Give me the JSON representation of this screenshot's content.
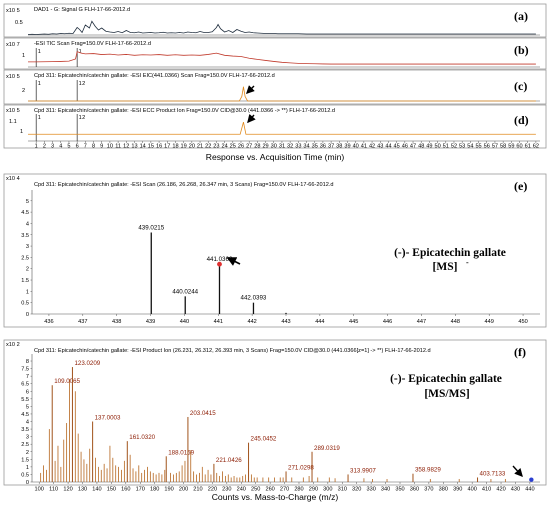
{
  "chart_data": [
    {
      "panel": "(a)",
      "type": "line",
      "title": "DAD1 - G: Signal G FLH-17-66-2012.d",
      "y_multiplier": "x10 5",
      "yticks": [
        "0.5"
      ],
      "ylim": [
        0,
        0.8
      ],
      "xlim": [
        0,
        62.5
      ],
      "color": "#1f2d3d",
      "series": [
        {
          "x": [
            0,
            0.5,
            1,
            1.5,
            2,
            2.5,
            3,
            3.5,
            4,
            4.5,
            5,
            5.5,
            6,
            6.3,
            6.6,
            7,
            7.5,
            7.8,
            8.2,
            8.6,
            9,
            9.5,
            10,
            10.5,
            11,
            11.5,
            12,
            12.5,
            13,
            13.5,
            14,
            14.5,
            15,
            15.5,
            16,
            16.5,
            17,
            17.5,
            18,
            18.5,
            19,
            19.5,
            20,
            20.5,
            21,
            21.5,
            22,
            22.5,
            23,
            23.2,
            23.5,
            24,
            24.5,
            25,
            25.5,
            26,
            26.5,
            27,
            27.5,
            28,
            28.5,
            29,
            29.5,
            30,
            30.5,
            31,
            31.5,
            32,
            32.5,
            33,
            34,
            35,
            36,
            37,
            38,
            39,
            40,
            41,
            42,
            43,
            44,
            45,
            46,
            47,
            48,
            49,
            50,
            51,
            52,
            53,
            54,
            55,
            56,
            57,
            58,
            59,
            60,
            61,
            62
          ],
          "y": [
            0.02,
            0.03,
            0.02,
            0.03,
            0.04,
            0.03,
            0.05,
            0.04,
            0.06,
            0.05,
            0.07,
            0.06,
            0.3,
            0.22,
            0.1,
            0.4,
            0.28,
            0.55,
            0.35,
            0.2,
            0.28,
            0.15,
            0.12,
            0.1,
            0.14,
            0.09,
            0.18,
            0.1,
            0.09,
            0.12,
            0.08,
            0.09,
            0.1,
            0.08,
            0.09,
            0.11,
            0.08,
            0.09,
            0.08,
            0.1,
            0.08,
            0.12,
            0.1,
            0.09,
            0.14,
            0.1,
            0.1,
            0.13,
            0.3,
            0.42,
            0.25,
            0.12,
            0.18,
            0.1,
            0.22,
            0.15,
            0.1,
            0.12,
            0.09,
            0.08,
            0.07,
            0.06,
            0.06,
            0.06,
            0.05,
            0.05,
            0.05,
            0.05,
            0.05,
            0.05,
            0.04,
            0.04,
            0.04,
            0.04,
            0.04,
            0.04,
            0.04,
            0.04,
            0.04,
            0.04,
            0.04,
            0.04,
            0.04,
            0.04,
            0.04,
            0.04,
            0.04,
            0.04,
            0.04,
            0.04,
            0.04,
            0.04,
            0.04,
            0.04,
            0.04,
            0.04,
            0.04,
            0.04,
            0.04
          ]
        }
      ]
    },
    {
      "panel": "(b)",
      "type": "line",
      "title": "-ESI TIC Scan Frag=150.0V FLH-17-66-2012.d",
      "y_multiplier": "x10 7",
      "yticks": [
        "1"
      ],
      "ylim": [
        0,
        1.3
      ],
      "xlim": [
        0,
        62.5
      ],
      "color": "#c0392b",
      "annotations": [
        "1",
        "1"
      ],
      "series": [
        {
          "x": [
            0,
            1,
            2,
            3,
            4,
            5,
            5.8,
            6,
            6.5,
            7,
            8,
            9,
            10,
            11,
            12,
            13,
            14,
            15,
            16,
            17,
            18,
            19,
            20,
            21,
            22,
            23,
            24,
            25,
            26,
            27,
            28,
            29,
            30,
            31,
            32,
            33,
            34,
            35,
            36,
            37,
            38,
            40,
            42,
            44,
            46,
            48,
            50,
            52,
            54,
            56,
            58,
            60,
            62
          ],
          "y": [
            0.35,
            0.35,
            0.36,
            0.37,
            0.38,
            0.4,
            0.55,
            1.05,
            0.95,
            0.9,
            0.92,
            0.85,
            0.88,
            0.82,
            0.86,
            0.8,
            0.84,
            0.82,
            0.85,
            0.8,
            0.84,
            0.8,
            0.82,
            0.8,
            0.86,
            0.95,
            0.8,
            0.75,
            0.72,
            0.6,
            0.52,
            0.45,
            0.38,
            0.32,
            0.28,
            0.25,
            0.23,
            0.22,
            0.21,
            0.2,
            0.2,
            0.2,
            0.2,
            0.2,
            0.2,
            0.2,
            0.2,
            0.2,
            0.2,
            0.2,
            0.2,
            0.2,
            0.2
          ]
        }
      ]
    },
    {
      "panel": "(c)",
      "type": "line",
      "title": "Cpd 311: Epicatechin/catechin gallate: -ESI EIC(441.0366) Scan Frag=150.0V FLH-17-66-2012.d",
      "y_multiplier": "x10 5",
      "yticks": [
        "2"
      ],
      "ylim": [
        0,
        2.8
      ],
      "xlim": [
        0,
        62.5
      ],
      "color": "#e08a1e",
      "annotations": [
        "1",
        "1",
        "2"
      ],
      "series": [
        {
          "x": [
            0,
            25.8,
            26.1,
            26.3,
            26.5,
            26.8,
            62
          ],
          "y": [
            0,
            0,
            0.6,
            1.9,
            0.6,
            0,
            0
          ]
        }
      ]
    },
    {
      "panel": "(d)",
      "type": "line",
      "title": "Cpd 311: Epicatechin/catechin gallate: -ESI ECC Product Ion Frag=150.0V CID@30.0 (441.0366 -> **) FLH-17-66-2012.d",
      "y_multiplier": "x10 5",
      "yticks": [
        "1.1",
        "1"
      ],
      "ylim": [
        0.95,
        1.15
      ],
      "xlim": [
        0,
        62.5
      ],
      "color": "#e08a1e",
      "annotations": [
        "1",
        "1",
        "2"
      ],
      "xlabel": "Response vs. Acquisition Time (min)",
      "xticks": [
        "1",
        "2",
        "3",
        "4",
        "5",
        "6",
        "7",
        "8",
        "9",
        "10",
        "11",
        "12",
        "13",
        "14",
        "15",
        "16",
        "17",
        "18",
        "19",
        "20",
        "21",
        "22",
        "23",
        "24",
        "25",
        "26",
        "27",
        "28",
        "29",
        "30",
        "31",
        "32",
        "33",
        "34",
        "35",
        "36",
        "37",
        "38",
        "39",
        "40",
        "41",
        "42",
        "43",
        "44",
        "45",
        "46",
        "47",
        "48",
        "49",
        "50",
        "51",
        "52",
        "53",
        "54",
        "55",
        "56",
        "57",
        "58",
        "59",
        "60",
        "61",
        "62"
      ],
      "series": [
        {
          "x": [
            0,
            25.9,
            26.3,
            26.6,
            62
          ],
          "y": [
            1.0,
            1.0,
            1.09,
            1.0,
            1.0
          ]
        }
      ]
    },
    {
      "panel": "(e)",
      "type": "bar",
      "title": "Cpd 311: Epicatechin/catechin gallate: -ESI Scan (26.186, 26.268, 26.347 min, 3 Scans) Frag=150.0V FLH-17-66-2012.d",
      "y_multiplier": "x10 4",
      "yticks": [
        "0",
        "0.5",
        "1",
        "1.5",
        "2",
        "2.5",
        "3",
        "3.5",
        "4",
        "4.5",
        "5"
      ],
      "ylim": [
        0,
        5.3
      ],
      "xlim": [
        435.5,
        450.5
      ],
      "xticks": [
        "436",
        "437",
        "438",
        "439",
        "440",
        "441",
        "442",
        "443",
        "444",
        "445",
        "446",
        "447",
        "448",
        "449",
        "450"
      ],
      "annotation": [
        "(-)- Epicatechin gallate",
        "[MS]"
      ],
      "annotation_superscript": "-",
      "peaks": [
        {
          "mz": 439.0215,
          "intensity": 3.6,
          "label": "439.0215"
        },
        {
          "mz": 440.0244,
          "intensity": 0.78,
          "label": "440.0244"
        },
        {
          "mz": 441.0362,
          "intensity": 2.2,
          "label": "441.0362",
          "marker": "#e03030"
        },
        {
          "mz": 442.0393,
          "intensity": 0.5,
          "label": "442.0393"
        },
        {
          "mz": 443.0,
          "intensity": 0.05,
          "label": ""
        }
      ]
    },
    {
      "panel": "(f)",
      "type": "bar",
      "title": "Cpd 311: Epicatechin/catechin gallate: -ESI Product Ion (26.231, 26.312, 26.393 min, 3 Scans) Frag=150.0V CID@30.0 (441.0366[z=1] -> **) FLH-17-66-2012.d",
      "y_multiplier": "x10 2",
      "yticks": [
        "0",
        "0.5",
        "1",
        "1.5",
        "2",
        "2.5",
        "3",
        "3.5",
        "4",
        "4.5",
        "5",
        "5.5",
        "6",
        "6.5",
        "7",
        "7.5",
        "8"
      ],
      "ylim": [
        0,
        8.2
      ],
      "xlim": [
        95,
        447
      ],
      "xticks": [
        "100",
        "110",
        "120",
        "130",
        "140",
        "150",
        "160",
        "170",
        "180",
        "190",
        "200",
        "210",
        "220",
        "230",
        "240",
        "250",
        "260",
        "270",
        "280",
        "290",
        "300",
        "310",
        "320",
        "330",
        "340",
        "350",
        "360",
        "370",
        "380",
        "390",
        "400",
        "410",
        "420",
        "430",
        "440"
      ],
      "xlabel": "Counts vs. Mass-to-Charge (m/z)",
      "annotation": [
        "(-)- Epicatechin gallate",
        "[MS/MS]"
      ],
      "peak_labels": [
        {
          "mz": 109.0065,
          "label": "109.0065",
          "intensity": 6.4
        },
        {
          "mz": 123.0209,
          "label": "123.0209",
          "intensity": 7.6
        },
        {
          "mz": 137.0003,
          "label": "137.0003",
          "intensity": 4.0
        },
        {
          "mz": 161.032,
          "label": "161.0320",
          "intensity": 2.7
        },
        {
          "mz": 188.0159,
          "label": "188.0159",
          "intensity": 1.7
        },
        {
          "mz": 203.0415,
          "label": "203.0415",
          "intensity": 4.3
        },
        {
          "mz": 221.0426,
          "label": "221.0426",
          "intensity": 1.2
        },
        {
          "mz": 245.0452,
          "label": "245.0452",
          "intensity": 2.6
        },
        {
          "mz": 271.0298,
          "label": "271.0298",
          "intensity": 0.7
        },
        {
          "mz": 289.0319,
          "label": "289.0319",
          "intensity": 2.0
        },
        {
          "mz": 313.9907,
          "label": "313.9907",
          "intensity": 0.5
        },
        {
          "mz": 358.9829,
          "label": "358.9829",
          "intensity": 0.55
        },
        {
          "mz": 403.7133,
          "label": "403.7133",
          "intensity": 0.3
        }
      ],
      "minor_peaks": [
        {
          "mz": 101,
          "intensity": 0.6
        },
        {
          "mz": 103,
          "intensity": 1.1
        },
        {
          "mz": 105,
          "intensity": 0.8
        },
        {
          "mz": 107,
          "intensity": 3.5
        },
        {
          "mz": 111,
          "intensity": 1.4
        },
        {
          "mz": 113,
          "intensity": 2.4
        },
        {
          "mz": 115,
          "intensity": 1.0
        },
        {
          "mz": 117,
          "intensity": 2.8
        },
        {
          "mz": 119,
          "intensity": 3.9
        },
        {
          "mz": 121,
          "intensity": 6.8
        },
        {
          "mz": 125,
          "intensity": 6.0
        },
        {
          "mz": 127,
          "intensity": 3.2
        },
        {
          "mz": 129,
          "intensity": 2.0
        },
        {
          "mz": 131,
          "intensity": 1.5
        },
        {
          "mz": 133,
          "intensity": 1.2
        },
        {
          "mz": 135,
          "intensity": 2.2
        },
        {
          "mz": 139,
          "intensity": 1.6
        },
        {
          "mz": 141,
          "intensity": 1.0
        },
        {
          "mz": 143,
          "intensity": 0.8
        },
        {
          "mz": 145,
          "intensity": 1.2
        },
        {
          "mz": 147,
          "intensity": 0.9
        },
        {
          "mz": 149,
          "intensity": 2.4
        },
        {
          "mz": 151,
          "intensity": 1.6
        },
        {
          "mz": 153,
          "intensity": 1.1
        },
        {
          "mz": 155,
          "intensity": 1.0
        },
        {
          "mz": 157,
          "intensity": 0.8
        },
        {
          "mz": 159,
          "intensity": 1.4
        },
        {
          "mz": 163,
          "intensity": 1.8
        },
        {
          "mz": 165,
          "intensity": 0.9
        },
        {
          "mz": 167,
          "intensity": 0.7
        },
        {
          "mz": 169,
          "intensity": 1.1
        },
        {
          "mz": 171,
          "intensity": 0.6
        },
        {
          "mz": 173,
          "intensity": 0.8
        },
        {
          "mz": 175,
          "intensity": 1.0
        },
        {
          "mz": 177,
          "intensity": 0.7
        },
        {
          "mz": 179,
          "intensity": 0.6
        },
        {
          "mz": 181,
          "intensity": 0.5
        },
        {
          "mz": 183,
          "intensity": 0.6
        },
        {
          "mz": 185,
          "intensity": 0.5
        },
        {
          "mz": 187,
          "intensity": 0.8
        },
        {
          "mz": 191,
          "intensity": 0.6
        },
        {
          "mz": 193,
          "intensity": 0.5
        },
        {
          "mz": 195,
          "intensity": 0.6
        },
        {
          "mz": 197,
          "intensity": 0.7
        },
        {
          "mz": 199,
          "intensity": 1.1
        },
        {
          "mz": 201,
          "intensity": 1.4
        },
        {
          "mz": 205,
          "intensity": 2.1
        },
        {
          "mz": 207,
          "intensity": 0.7
        },
        {
          "mz": 209,
          "intensity": 0.5
        },
        {
          "mz": 211,
          "intensity": 0.6
        },
        {
          "mz": 213,
          "intensity": 1.0
        },
        {
          "mz": 215,
          "intensity": 0.5
        },
        {
          "mz": 217,
          "intensity": 0.8
        },
        {
          "mz": 219,
          "intensity": 0.5
        },
        {
          "mz": 223,
          "intensity": 0.6
        },
        {
          "mz": 225,
          "intensity": 0.4
        },
        {
          "mz": 227,
          "intensity": 0.7
        },
        {
          "mz": 229,
          "intensity": 0.4
        },
        {
          "mz": 231,
          "intensity": 0.5
        },
        {
          "mz": 233,
          "intensity": 0.3
        },
        {
          "mz": 235,
          "intensity": 0.4
        },
        {
          "mz": 237,
          "intensity": 0.3
        },
        {
          "mz": 239,
          "intensity": 0.3
        },
        {
          "mz": 241,
          "intensity": 0.4
        },
        {
          "mz": 243,
          "intensity": 0.5
        },
        {
          "mz": 247,
          "intensity": 0.5
        },
        {
          "mz": 249,
          "intensity": 0.3
        },
        {
          "mz": 251,
          "intensity": 0.3
        },
        {
          "mz": 255,
          "intensity": 0.3
        },
        {
          "mz": 259,
          "intensity": 0.3
        },
        {
          "mz": 263,
          "intensity": 0.3
        },
        {
          "mz": 267,
          "intensity": 0.3
        },
        {
          "mz": 269,
          "intensity": 0.3
        },
        {
          "mz": 275,
          "intensity": 0.3
        },
        {
          "mz": 283,
          "intensity": 0.3
        },
        {
          "mz": 287,
          "intensity": 0.4
        },
        {
          "mz": 293,
          "intensity": 0.3
        },
        {
          "mz": 301,
          "intensity": 0.3
        },
        {
          "mz": 305,
          "intensity": 0.25
        },
        {
          "mz": 325,
          "intensity": 0.25
        },
        {
          "mz": 331,
          "intensity": 0.2
        },
        {
          "mz": 341,
          "intensity": 0.2
        },
        {
          "mz": 371,
          "intensity": 0.2
        },
        {
          "mz": 391,
          "intensity": 0.2
        },
        {
          "mz": 413,
          "intensity": 0.2
        },
        {
          "mz": 423,
          "intensity": 0.2
        }
      ],
      "precursor_marker": {
        "mz": 441.0,
        "intensity": 0.15,
        "color": "#2b3fd1"
      }
    }
  ],
  "panel_labels": [
    "(a)",
    "(b)",
    "(c)",
    "(d)",
    "(e)",
    "(f)"
  ]
}
